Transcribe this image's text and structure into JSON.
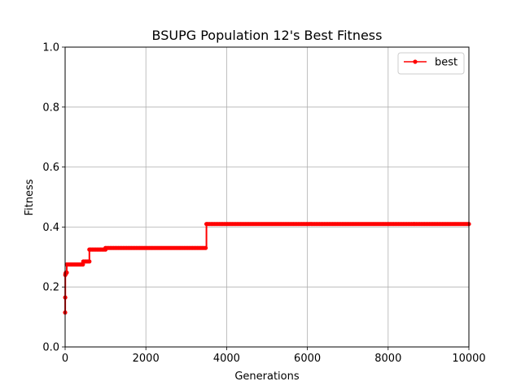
{
  "chart_data": {
    "type": "line",
    "title": "BSUPG Population 12's Best Fitness",
    "xlabel": "Generations",
    "ylabel": "Fitness",
    "xlim": [
      0,
      10000
    ],
    "ylim": [
      0.0,
      1.0
    ],
    "xticks": [
      0,
      2000,
      4000,
      6000,
      8000,
      10000
    ],
    "xtick_labels": [
      "0",
      "2000",
      "4000",
      "6000",
      "8000",
      "10000"
    ],
    "yticks": [
      0.0,
      0.2,
      0.4,
      0.6,
      0.8,
      1.0
    ],
    "ytick_labels": [
      "0.0",
      "0.2",
      "0.4",
      "0.6",
      "0.8",
      "1.0"
    ],
    "grid": true,
    "legend_position": "top-right",
    "series": [
      {
        "name": "best",
        "color": "#ff0000",
        "marker": "circle",
        "step": true,
        "x": [
          0,
          2,
          5,
          10,
          20,
          40,
          450,
          600,
          1000,
          3500,
          10000
        ],
        "y": [
          0.115,
          0.165,
          0.24,
          0.245,
          0.248,
          0.275,
          0.285,
          0.325,
          0.33,
          0.41,
          0.41
        ]
      }
    ]
  }
}
